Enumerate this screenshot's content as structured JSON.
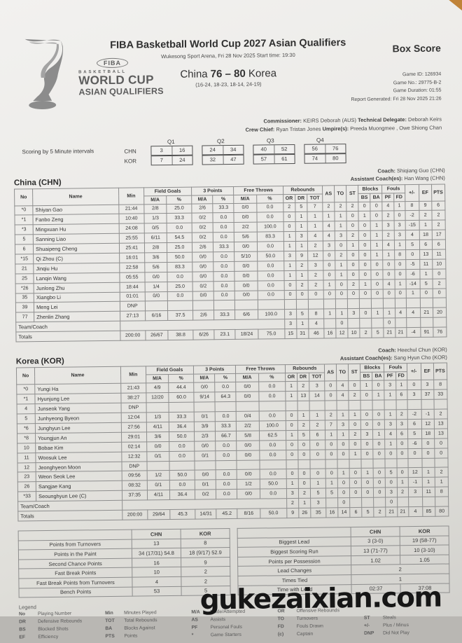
{
  "watermark": "gukezaixian.com",
  "header": {
    "logo": {
      "fiba": "FIBA",
      "basketball": "BASKETBALL",
      "world_cup": "WORLD CUP",
      "asian_qualifiers": "ASIAN QUALIFIERS"
    },
    "title": "FIBA Basketball World Cup 2027 Asian Qualifiers",
    "venue": "Wukesong Sport Arena, Fri 28 Nov 2025 Start time: 19:30",
    "score_team_a": "China ",
    "score_result": "76 – 80",
    "score_team_b": " Korea",
    "quarter_scores": "(16-24, 18-23, 18-14, 24-19)",
    "box_score_title": "Box Score",
    "game_id": "Game ID: 126934",
    "game_no": "Game No.: 29775-B-2",
    "game_duration": "Game Duration: 01:55",
    "report_generated": "Report Generated: Fri 28 Nov 2025 21:26",
    "commissioner_label": "Commissioner:",
    "commissioner_value": " KEIRS Deborah (AUS) ",
    "delegate_label": "Technical Delegate:",
    "delegate_value": " Deborah Keirs",
    "crew_chief_label": "Crew Chief:",
    "crew_chief_value": " Ryan Tristan Jones ",
    "umpires_label": "Umpire(s):",
    "umpires_value": " Preeda Muongmee , Owe Shiong Chan"
  },
  "intervals": {
    "label": "Scoring by 5 Minute intervals",
    "quarter_labels": [
      "Q1",
      "Q2",
      "Q3",
      "Q4"
    ],
    "rows": [
      {
        "team": "CHN",
        "values": [
          [
            "3",
            "16"
          ],
          [
            "24",
            "34"
          ],
          [
            "40",
            "52"
          ],
          [
            "56",
            "76"
          ]
        ]
      },
      {
        "team": "KOR",
        "values": [
          [
            "7",
            "24"
          ],
          [
            "32",
            "47"
          ],
          [
            "57",
            "61"
          ],
          [
            "74",
            "80"
          ]
        ]
      }
    ]
  },
  "box_header": {
    "no": "No",
    "name": "Name",
    "min": "Min",
    "fg": "Field Goals",
    "tp": "3 Points",
    "ft": "Free Throws",
    "reb": "Rebounds",
    "ma": "M/A",
    "pct": "%",
    "or": "OR",
    "dr": "DR",
    "tot": "TOT",
    "as": "AS",
    "to": "TO",
    "st": "ST",
    "blocks": "Blocks",
    "fouls": "Fouls",
    "bs": "BS",
    "ba": "BA",
    "pf": "PF",
    "fd": "FD",
    "pm": "+/-",
    "ef": "EF",
    "pts": "PTS"
  },
  "teams": [
    {
      "name": "China (CHN)",
      "coach_label": "Coach:",
      "coach_value": " Shiqiang Guo (CHN)",
      "assistant_label": "Assistant Coach(es):",
      "assistant_value": " Han Wang (CHN)",
      "players": [
        [
          "*0",
          "Shiyan Gao",
          "21:44",
          "2/8",
          "25.0",
          "2/6",
          "33.3",
          "0/0",
          "0.0",
          "2",
          "5",
          "7",
          "2",
          "2",
          "2",
          "0",
          "0",
          "4",
          "1",
          "8",
          "9",
          "6"
        ],
        [
          "*1",
          "Fanbo Zeng",
          "10:40",
          "1/3",
          "33.3",
          "0/2",
          "0.0",
          "0/0",
          "0.0",
          "0",
          "1",
          "1",
          "1",
          "1",
          "0",
          "1",
          "0",
          "2",
          "0",
          "-2",
          "2",
          "2"
        ],
        [
          "*3",
          "Mingxuan Hu",
          "24:08",
          "0/5",
          "0.0",
          "0/2",
          "0.0",
          "2/2",
          "100.0",
          "0",
          "1",
          "1",
          "4",
          "1",
          "0",
          "0",
          "1",
          "3",
          "3",
          "-15",
          "1",
          "2"
        ],
        [
          "5",
          "Sanning Liao",
          "25:55",
          "6/11",
          "54.5",
          "0/2",
          "0.0",
          "5/6",
          "83.3",
          "1",
          "3",
          "4",
          "4",
          "3",
          "2",
          "0",
          "1",
          "2",
          "3",
          "4",
          "18",
          "17"
        ],
        [
          "6",
          "Shuaipeng Cheng",
          "25:41",
          "2/8",
          "25.0",
          "2/6",
          "33.3",
          "0/0",
          "0.0",
          "1",
          "1",
          "2",
          "3",
          "0",
          "1",
          "0",
          "1",
          "4",
          "1",
          "5",
          "6",
          "6"
        ],
        [
          "*15",
          "Qi Zhou (C)",
          "16:01",
          "3/6",
          "50.0",
          "0/0",
          "0.0",
          "5/10",
          "50.0",
          "3",
          "9",
          "12",
          "0",
          "2",
          "0",
          "0",
          "1",
          "1",
          "8",
          "0",
          "13",
          "11"
        ],
        [
          "21",
          "Jinqiu Hu",
          "22:58",
          "5/6",
          "83.3",
          "0/0",
          "0.0",
          "0/0",
          "0.0",
          "1",
          "2",
          "3",
          "0",
          "1",
          "0",
          "0",
          "0",
          "0",
          "0",
          "-5",
          "11",
          "10"
        ],
        [
          "25",
          "Lanqin Wang",
          "05:55",
          "0/0",
          "0.0",
          "0/0",
          "0.0",
          "0/0",
          "0.0",
          "1",
          "1",
          "2",
          "0",
          "1",
          "0",
          "0",
          "0",
          "0",
          "0",
          "-6",
          "1",
          "0"
        ],
        [
          "*26",
          "Junlong Zhu",
          "18:44",
          "1/4",
          "25.0",
          "0/2",
          "0.0",
          "0/0",
          "0.0",
          "0",
          "2",
          "2",
          "1",
          "0",
          "2",
          "1",
          "0",
          "4",
          "1",
          "-14",
          "5",
          "2"
        ],
        [
          "35",
          "Xiangbo Li",
          "01:01",
          "0/0",
          "0.0",
          "0/0",
          "0.0",
          "0/0",
          "0.0",
          "0",
          "0",
          "0",
          "0",
          "0",
          "0",
          "0",
          "0",
          "0",
          "0",
          "1",
          "0",
          "0"
        ],
        [
          "39",
          "Meng Lei",
          "DNP",
          "",
          "",
          "",
          "",
          "",
          "",
          "",
          "",
          "",
          "",
          "",
          "",
          "",
          "",
          "",
          "",
          "",
          "",
          ""
        ],
        [
          "77",
          "Zhenlin Zhang",
          "27:13",
          "6/16",
          "37.5",
          "2/6",
          "33.3",
          "6/6",
          "100.0",
          "3",
          "5",
          "8",
          "1",
          "1",
          "3",
          "0",
          "1",
          "1",
          "4",
          "4",
          "21",
          "20"
        ]
      ],
      "team_row": {
        "label": "Team/Coach",
        "or": "3",
        "dr": "1",
        "tot": "4",
        "to": "0",
        "pf": "0"
      },
      "totals": [
        "Totals",
        "200:00",
        "26/67",
        "38.8",
        "6/26",
        "23.1",
        "18/24",
        "75.0",
        "15",
        "31",
        "46",
        "16",
        "12",
        "10",
        "2",
        "5",
        "21",
        "21",
        "-4",
        "91",
        "76"
      ]
    },
    {
      "name": "Korea (KOR)",
      "coach_label": "Coach:",
      "coach_value": " Heechul Chun (KOR)",
      "assistant_label": "Assistant Coach(es):",
      "assistant_value": " Sang Hyun Cho (KOR)",
      "players": [
        [
          "*0",
          "Yungi Ha",
          "21:43",
          "4/9",
          "44.4",
          "0/0",
          "0.0",
          "0/0",
          "0.0",
          "1",
          "2",
          "3",
          "0",
          "4",
          "0",
          "1",
          "0",
          "3",
          "1",
          "0",
          "3",
          "8"
        ],
        [
          "*1",
          "Hyunjung Lee",
          "38:27",
          "12/20",
          "60.0",
          "9/14",
          "64.3",
          "0/0",
          "0.0",
          "1",
          "13",
          "14",
          "0",
          "4",
          "2",
          "0",
          "1",
          "1",
          "6",
          "3",
          "37",
          "33"
        ],
        [
          "4",
          "Junseok Yang",
          "DNP",
          "",
          "",
          "",
          "",
          "",
          "",
          "",
          "",
          "",
          "",
          "",
          "",
          "",
          "",
          "",
          "",
          "",
          "",
          ""
        ],
        [
          "5",
          "Junhyeong Byeon",
          "12:04",
          "1/3",
          "33.3",
          "0/1",
          "0.0",
          "0/4",
          "0.0",
          "0",
          "1",
          "1",
          "2",
          "1",
          "1",
          "0",
          "0",
          "1",
          "2",
          "-2",
          "-1",
          "2"
        ],
        [
          "*6",
          "Junghyun Lee",
          "27:56",
          "4/11",
          "36.4",
          "3/9",
          "33.3",
          "2/2",
          "100.0",
          "0",
          "2",
          "2",
          "7",
          "3",
          "0",
          "0",
          "0",
          "3",
          "3",
          "6",
          "12",
          "13"
        ],
        [
          "*8",
          "Youngjun An",
          "29:01",
          "3/6",
          "50.0",
          "2/3",
          "66.7",
          "5/8",
          "62.5",
          "1",
          "5",
          "6",
          "1",
          "1",
          "2",
          "3",
          "1",
          "4",
          "6",
          "5",
          "18",
          "13"
        ],
        [
          "10",
          "Bobae Kim",
          "02:14",
          "0/0",
          "0.0",
          "0/0",
          "0.0",
          "0/0",
          "0.0",
          "0",
          "0",
          "0",
          "0",
          "0",
          "0",
          "0",
          "0",
          "1",
          "0",
          "-6",
          "0",
          "0"
        ],
        [
          "11",
          "Woosuk Lee",
          "12:32",
          "0/1",
          "0.0",
          "0/1",
          "0.0",
          "0/0",
          "0.0",
          "0",
          "0",
          "0",
          "0",
          "0",
          "1",
          "0",
          "0",
          "0",
          "0",
          "0",
          "0",
          "0"
        ],
        [
          "12",
          "Jeonghyeon Moon",
          "DNP",
          "",
          "",
          "",
          "",
          "",
          "",
          "",
          "",
          "",
          "",
          "",
          "",
          "",
          "",
          "",
          "",
          "",
          "",
          ""
        ],
        [
          "23",
          "Weon Seok Lee",
          "09:56",
          "1/2",
          "50.0",
          "0/0",
          "0.0",
          "0/0",
          "0.0",
          "0",
          "0",
          "0",
          "0",
          "1",
          "0",
          "1",
          "0",
          "5",
          "0",
          "12",
          "1",
          "2"
        ],
        [
          "26",
          "Sangjae Kang",
          "08:32",
          "0/1",
          "0.0",
          "0/1",
          "0.0",
          "1/2",
          "50.0",
          "1",
          "0",
          "1",
          "1",
          "0",
          "0",
          "0",
          "0",
          "0",
          "1",
          "-1",
          "1",
          "1"
        ],
        [
          "*33",
          "Seounghyun Lee (C)",
          "37:35",
          "4/11",
          "36.4",
          "0/2",
          "0.0",
          "0/0",
          "0.0",
          "3",
          "2",
          "5",
          "5",
          "0",
          "0",
          "0",
          "0",
          "3",
          "2",
          "3",
          "11",
          "8"
        ]
      ],
      "team_row": {
        "label": "Team/Coach",
        "or": "2",
        "dr": "1",
        "tot": "3",
        "to": "0",
        "pf": "0"
      },
      "totals": [
        "Totals",
        "200:00",
        "29/64",
        "45.3",
        "14/31",
        "45.2",
        "8/16",
        "50.0",
        "9",
        "26",
        "35",
        "16",
        "14",
        "6",
        "5",
        "2",
        "21",
        "21",
        "4",
        "85",
        "80"
      ]
    }
  ],
  "team_stats": {
    "col_chn": "CHN",
    "col_kor": "KOR",
    "left_rows": [
      [
        "Points from Turnovers",
        "13",
        "8"
      ],
      [
        "Points in the Paint",
        "34 (17/31) 54.8",
        "18 (9/17) 52.9"
      ],
      [
        "Second Chance Points",
        "16",
        "9"
      ],
      [
        "Fast Break Points",
        "10",
        "2"
      ],
      [
        "Fast Break Points from Turnovers",
        "4",
        "2"
      ],
      [
        "Bench Points",
        "53",
        "5"
      ]
    ],
    "right_rows": [
      [
        "Biggest Lead",
        "3 (3-0)",
        "19 (58-77)"
      ],
      [
        "Biggest Scoring Run",
        "13 (71-77)",
        "10 (3-10)"
      ],
      [
        "Points per Possession",
        "1.02",
        "1.05"
      ],
      [
        "Lead Changes",
        "2",
        null
      ],
      [
        "Times Tied",
        "1",
        null
      ],
      [
        "Time with Lead",
        "02:37",
        "37:08"
      ]
    ]
  },
  "legend": {
    "title": "Legend",
    "rows": [
      [
        [
          "No",
          "Playing Number"
        ],
        [
          "Min",
          "Minutes Played"
        ],
        [
          "M/A",
          "Made/Attempted"
        ],
        [
          "OR",
          "Offensive Rebounds"
        ]
      ],
      [
        [
          "DR",
          "Defensive Rebounds"
        ],
        [
          "TOT",
          "Total Rebounds"
        ],
        [
          "AS",
          "Assists"
        ],
        [
          "TO",
          "Turnovers"
        ],
        [
          "ST",
          "Steals"
        ]
      ],
      [
        [
          "BS",
          "Blocked Shots"
        ],
        [
          "BA",
          "Blocks Against"
        ],
        [
          "PF",
          "Personal Fouls"
        ],
        [
          "FD",
          "Fouls Drawn"
        ],
        [
          "+/-",
          "Plus / Minus"
        ]
      ],
      [
        [
          "EF",
          "Efficiency"
        ],
        [
          "PTS",
          "Points"
        ],
        [
          "*",
          "Game Starters"
        ],
        [
          "(c)",
          "Captain"
        ],
        [
          "DNP",
          "Did Not Play"
        ]
      ]
    ]
  }
}
